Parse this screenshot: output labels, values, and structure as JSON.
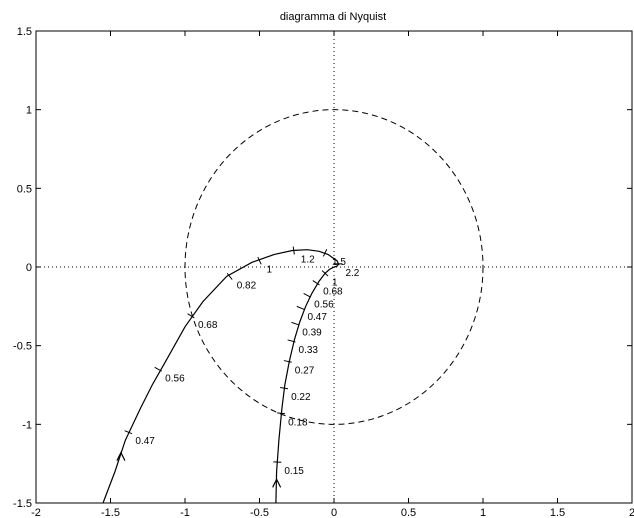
{
  "chart_data": {
    "type": "line",
    "title": "diagramma di Nyquist",
    "xlabel": "",
    "ylabel": "",
    "xlim": [
      -2,
      2
    ],
    "ylim": [
      -1.5,
      1.5
    ],
    "grid": false,
    "x_ticks": [
      "-2",
      "-1.5",
      "-1",
      "-0.5",
      "0",
      "0.5",
      "1",
      "1.5",
      "2"
    ],
    "y_ticks": [
      "1.5",
      "1",
      "0.5",
      "0",
      "-0.5",
      "-1",
      "-1.5"
    ],
    "unit_circle": {
      "center": [
        0,
        0
      ],
      "radius": 1,
      "style": "dashed"
    },
    "axes_lines": {
      "x": 0,
      "y": 0,
      "style": "dotted"
    },
    "series": [
      {
        "points": [
          [
            -1.55,
            -1.5
          ],
          [
            -1.47,
            -1.3
          ],
          [
            -1.4,
            -1.1
          ],
          [
            -1.3,
            -0.9
          ],
          [
            -1.22,
            -0.75
          ],
          [
            -1.13,
            -0.6
          ],
          [
            -1.0,
            -0.38
          ],
          [
            -0.88,
            -0.22
          ],
          [
            -0.72,
            -0.06
          ],
          [
            -0.55,
            0.03
          ],
          [
            -0.4,
            0.08
          ],
          [
            -0.28,
            0.105
          ],
          [
            -0.18,
            0.11
          ],
          [
            -0.1,
            0.1
          ],
          [
            -0.04,
            0.08
          ],
          [
            -0.01,
            0.06
          ],
          [
            0.02,
            0.04
          ],
          [
            0.03,
            0.02
          ],
          [
            0.02,
            0.005
          ],
          [
            0.0,
            0.0
          ]
        ],
        "ticks": [
          {
            "x": -1.38,
            "y": -1.05,
            "label": "0.47"
          },
          {
            "x": -1.18,
            "y": -0.65,
            "label": "0.56"
          },
          {
            "x": -0.96,
            "y": -0.31,
            "label": "0.68"
          },
          {
            "x": -0.7,
            "y": -0.06,
            "label": "0.82"
          },
          {
            "x": -0.5,
            "y": 0.04,
            "label": "1"
          },
          {
            "x": -0.27,
            "y": 0.105,
            "label": "1.2"
          },
          {
            "x": -0.06,
            "y": 0.09,
            "label": "1.5"
          },
          {
            "x": 0.03,
            "y": 0.02,
            "label": "2.2"
          }
        ],
        "arrow": {
          "x": -1.43,
          "y": -1.18
        }
      },
      {
        "points": [
          [
            -0.39,
            -1.5
          ],
          [
            -0.385,
            -1.3
          ],
          [
            -0.37,
            -1.1
          ],
          [
            -0.35,
            -0.9
          ],
          [
            -0.33,
            -0.75
          ],
          [
            -0.3,
            -0.6
          ],
          [
            -0.265,
            -0.46
          ],
          [
            -0.23,
            -0.35
          ],
          [
            -0.19,
            -0.25
          ],
          [
            -0.15,
            -0.17
          ],
          [
            -0.1,
            -0.09
          ],
          [
            -0.06,
            -0.04
          ],
          [
            -0.03,
            -0.015
          ],
          [
            0.0,
            0.0
          ]
        ],
        "ticks": [
          {
            "x": -0.38,
            "y": -1.24,
            "label": "0.15"
          },
          {
            "x": -0.355,
            "y": -0.93,
            "label": "0.18"
          },
          {
            "x": -0.335,
            "y": -0.77,
            "label": "0.22"
          },
          {
            "x": -0.31,
            "y": -0.6,
            "label": "0.27"
          },
          {
            "x": -0.285,
            "y": -0.47,
            "label": "0.33"
          },
          {
            "x": -0.26,
            "y": -0.36,
            "label": "0.39"
          },
          {
            "x": -0.225,
            "y": -0.26,
            "label": "0.47"
          },
          {
            "x": -0.18,
            "y": -0.18,
            "label": "0.56"
          },
          {
            "x": -0.12,
            "y": -0.1,
            "label": "0.68"
          },
          {
            "x": -0.06,
            "y": -0.04,
            "label": "1"
          }
        ],
        "arrow": {
          "x": -0.385,
          "y": -1.35
        }
      }
    ]
  }
}
